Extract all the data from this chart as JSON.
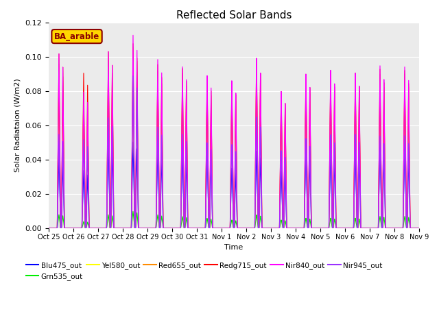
{
  "title": "Reflected Solar Bands",
  "ylabel": "Solar Radiataion (W/m2)",
  "xlabel": "Time",
  "annotation": "BA_arable",
  "annotation_color": "#8B0000",
  "annotation_bg": "#FFD700",
  "ylim": [
    0,
    0.12
  ],
  "bg_color": "#EBEBEB",
  "x_tick_labels": [
    "Oct 25",
    "Oct 26",
    "Oct 27",
    "Oct 28",
    "Oct 29",
    "Oct 30",
    "Oct 31",
    "Nov 1",
    "Nov 2",
    "Nov 3",
    "Nov 4",
    "Nov 5",
    "Nov 6",
    "Nov 7",
    "Nov 8",
    "Nov 9"
  ],
  "series": [
    {
      "label": "Blu475_out",
      "color": "#0000FF"
    },
    {
      "label": "Grn535_out",
      "color": "#00EE00"
    },
    {
      "label": "Yel580_out",
      "color": "#FFFF00"
    },
    {
      "label": "Red655_out",
      "color": "#FF8C00"
    },
    {
      "label": "Redg715_out",
      "color": "#FF0000"
    },
    {
      "label": "Nir840_out",
      "color": "#FF00FF"
    },
    {
      "label": "Nir945_out",
      "color": "#9B30FF"
    }
  ],
  "day_peaks": {
    "nir840": [
      0.102,
      0.08,
      0.104,
      0.114,
      0.1,
      0.096,
      0.091,
      0.088,
      0.101,
      0.081,
      0.091,
      0.093,
      0.091,
      0.095,
      0.094
    ],
    "redg715": [
      0.102,
      0.091,
      0.104,
      0.109,
      0.097,
      0.095,
      0.089,
      0.087,
      0.101,
      0.081,
      0.091,
      0.091,
      0.091,
      0.093,
      0.092
    ],
    "red655": [
      0.096,
      0.08,
      0.099,
      0.107,
      0.093,
      0.092,
      0.086,
      0.083,
      0.097,
      0.078,
      0.087,
      0.088,
      0.088,
      0.09,
      0.09
    ],
    "yel580": [
      0.09,
      0.075,
      0.093,
      0.1,
      0.088,
      0.087,
      0.081,
      0.079,
      0.092,
      0.074,
      0.082,
      0.082,
      0.082,
      0.085,
      0.085
    ],
    "nir945": [
      0.055,
      0.052,
      0.065,
      0.09,
      0.06,
      0.056,
      0.051,
      0.05,
      0.066,
      0.046,
      0.053,
      0.055,
      0.055,
      0.054,
      0.054
    ],
    "grn535": [
      0.008,
      0.004,
      0.008,
      0.01,
      0.008,
      0.007,
      0.006,
      0.005,
      0.008,
      0.005,
      0.006,
      0.006,
      0.006,
      0.007,
      0.007
    ],
    "blu475": [
      0.042,
      0.034,
      0.05,
      0.051,
      0.047,
      0.046,
      0.044,
      0.036,
      0.046,
      0.034,
      0.045,
      0.045,
      0.045,
      0.047,
      0.047
    ]
  }
}
